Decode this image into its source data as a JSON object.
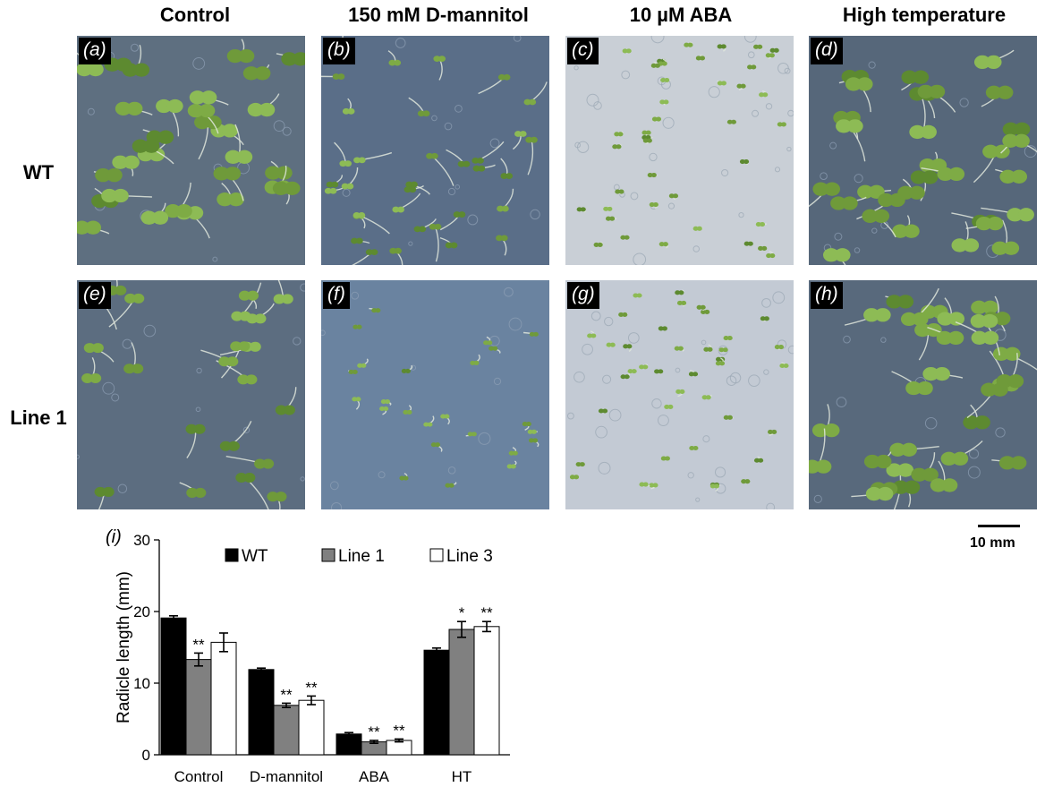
{
  "figure": {
    "columns": [
      "Control",
      "150 mM D-mannitol",
      "10 µM ABA",
      "High temperature"
    ],
    "rows": [
      "WT",
      "Line 1"
    ],
    "panel_letters": [
      "(a)",
      "(b)",
      "(c)",
      "(d)",
      "(e)",
      "(f)",
      "(g)",
      "(h)"
    ],
    "scale_bar_label": "10 mm"
  },
  "chart_data": {
    "type": "bar",
    "panel_label": "(i)",
    "title": "",
    "xlabel": "",
    "ylabel": "Radicle length (mm)",
    "ylim": [
      0,
      30
    ],
    "yticks": [
      0,
      10,
      20,
      30
    ],
    "categories": [
      "Control",
      "D-mannitol",
      "ABA",
      "HT"
    ],
    "legend_position": "top",
    "series": [
      {
        "name": "WT",
        "color": "#000000",
        "values": [
          19.1,
          11.9,
          2.9,
          14.6
        ],
        "errors": [
          0.3,
          0.2,
          0.2,
          0.3
        ],
        "sig": [
          "",
          "",
          "",
          ""
        ]
      },
      {
        "name": "Line 1",
        "color": "#808080",
        "values": [
          13.3,
          6.9,
          1.8,
          17.5
        ],
        "errors": [
          0.9,
          0.3,
          0.2,
          1.1
        ],
        "sig": [
          "**",
          "**",
          "**",
          "*"
        ]
      },
      {
        "name": "Line 3",
        "color": "#ffffff",
        "values": [
          15.7,
          7.6,
          2.0,
          17.9
        ],
        "errors": [
          1.3,
          0.6,
          0.2,
          0.7
        ],
        "sig": [
          "",
          "**",
          "**",
          "**"
        ]
      }
    ]
  }
}
